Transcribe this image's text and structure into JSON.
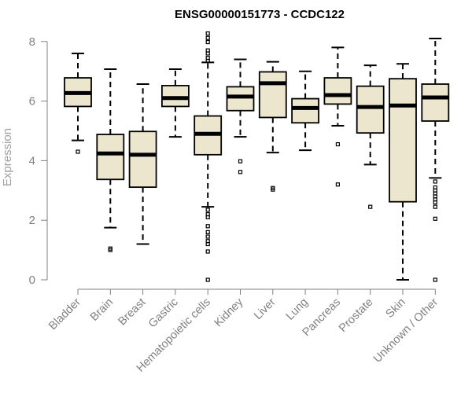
{
  "chart_data": {
    "type": "boxplot",
    "title": "ENSG00000151773 - CCDC122",
    "xlabel": "",
    "ylabel": "Expression",
    "ylim": [
      0,
      8.4
    ],
    "yticks": [
      0,
      2,
      4,
      6,
      8
    ],
    "box_fill": "#ede6cf",
    "categories": [
      "Bladder",
      "Brain",
      "Breast",
      "Gastric",
      "Hematopoietic cells",
      "Kidney",
      "Liver",
      "Lung",
      "Pancreas",
      "Prostate",
      "Skin",
      "Unknown / Other"
    ],
    "boxes": [
      {
        "name": "Bladder",
        "whisker_low": 4.68,
        "q1": 5.82,
        "median": 6.27,
        "q3": 6.78,
        "whisker_high": 7.6,
        "outliers": [
          4.3
        ]
      },
      {
        "name": "Brain",
        "whisker_low": 1.75,
        "q1": 3.37,
        "median": 4.24,
        "q3": 4.88,
        "whisker_high": 7.07,
        "outliers": [
          1.05,
          1.0
        ]
      },
      {
        "name": "Breast",
        "whisker_low": 1.2,
        "q1": 3.11,
        "median": 4.2,
        "q3": 4.98,
        "whisker_high": 6.57,
        "outliers": []
      },
      {
        "name": "Gastric",
        "whisker_low": 4.8,
        "q1": 5.82,
        "median": 6.1,
        "q3": 6.52,
        "whisker_high": 7.07,
        "outliers": []
      },
      {
        "name": "Hematopoietic cells",
        "whisker_low": 2.45,
        "q1": 4.2,
        "median": 4.9,
        "q3": 5.5,
        "whisker_high": 7.3,
        "outliers": [
          8.27,
          8.12,
          7.98,
          7.7,
          7.6,
          7.45,
          7.35,
          2.35,
          2.2,
          2.1,
          1.8,
          1.6,
          1.45,
          1.3,
          1.2,
          0.95,
          0.0
        ]
      },
      {
        "name": "Kidney",
        "whisker_low": 4.8,
        "q1": 5.68,
        "median": 6.15,
        "q3": 6.48,
        "whisker_high": 7.4,
        "outliers": [
          3.98,
          3.62
        ]
      },
      {
        "name": "Liver",
        "whisker_low": 4.27,
        "q1": 5.45,
        "median": 6.6,
        "q3": 6.98,
        "whisker_high": 7.32,
        "outliers": [
          3.08,
          3.03
        ]
      },
      {
        "name": "Lung",
        "whisker_low": 4.35,
        "q1": 5.27,
        "median": 5.77,
        "q3": 6.08,
        "whisker_high": 7.0,
        "outliers": []
      },
      {
        "name": "Pancreas",
        "whisker_low": 5.17,
        "q1": 5.9,
        "median": 6.2,
        "q3": 6.78,
        "whisker_high": 7.8,
        "outliers": [
          4.55,
          3.2
        ]
      },
      {
        "name": "Prostate",
        "whisker_low": 3.87,
        "q1": 4.93,
        "median": 5.8,
        "q3": 6.5,
        "whisker_high": 7.2,
        "outliers": [
          2.45
        ]
      },
      {
        "name": "Skin",
        "whisker_low": 0.0,
        "q1": 2.62,
        "median": 5.85,
        "q3": 6.75,
        "whisker_high": 7.25,
        "outliers": []
      },
      {
        "name": "Unknown / Other",
        "whisker_low": 3.42,
        "q1": 5.33,
        "median": 6.12,
        "q3": 6.57,
        "whisker_high": 8.1,
        "outliers": [
          3.3,
          3.1,
          3.0,
          2.9,
          2.8,
          2.7,
          2.6,
          2.45,
          2.05,
          0.0
        ]
      }
    ]
  }
}
